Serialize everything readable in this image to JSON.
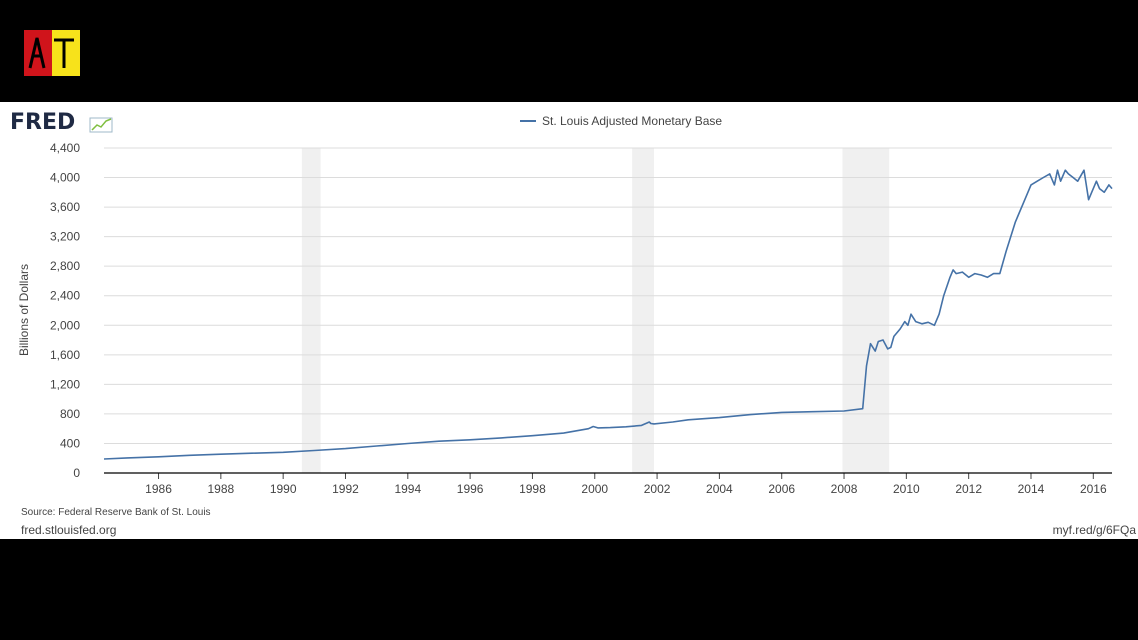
{
  "header": {
    "channel_logo_text": "AT",
    "channel_logo_colors": [
      "#d0141b",
      "#f7e21b"
    ]
  },
  "fred": {
    "logo_text": "FRED",
    "source": "Source: Federal Reserve Bank of St. Louis",
    "site": "fred.stlouisfed.org",
    "short_url": "myf.red/g/6FQa"
  },
  "chart_data": {
    "type": "line",
    "title": "",
    "xlabel": "",
    "ylabel": "Billions of Dollars",
    "xlim": [
      1984.25,
      2016.6
    ],
    "ylim": [
      0,
      4400
    ],
    "y_ticks": [
      0,
      400,
      800,
      1200,
      1600,
      2000,
      2400,
      2800,
      3200,
      3600,
      4000,
      4400
    ],
    "y_tick_labels": [
      "0",
      "400",
      "800",
      "1,200",
      "1,600",
      "2,000",
      "2,400",
      "2,800",
      "3,200",
      "3,600",
      "4,000",
      "4,400"
    ],
    "x_ticks": [
      1986,
      1988,
      1990,
      1992,
      1994,
      1996,
      1998,
      2000,
      2002,
      2004,
      2006,
      2008,
      2010,
      2012,
      2014,
      2016
    ],
    "x_tick_labels": [
      "1986",
      "1988",
      "1990",
      "1992",
      "1994",
      "1996",
      "1998",
      "2000",
      "2002",
      "2004",
      "2006",
      "2008",
      "2010",
      "2012",
      "2014",
      "2016"
    ],
    "grid": true,
    "legend_position": "top-center",
    "recessions": [
      [
        1990.6,
        1991.2
      ],
      [
        2001.2,
        2001.9
      ],
      [
        2007.95,
        2009.45
      ]
    ],
    "series": [
      {
        "name": "St. Louis Adjusted Monetary Base",
        "color": "#4572a7",
        "x": [
          1984.25,
          1985,
          1986,
          1987,
          1988,
          1989,
          1990,
          1991,
          1992,
          1993,
          1994,
          1995,
          1996,
          1997,
          1998,
          1999,
          1999.8,
          1999.95,
          2000.1,
          2000.5,
          2001,
          2001.5,
          2001.75,
          2001.8,
          2001.9,
          2002.5,
          2003,
          2004,
          2005,
          2006,
          2007,
          2008,
          2008.6,
          2008.72,
          2008.85,
          2009,
          2009.1,
          2009.25,
          2009.4,
          2009.5,
          2009.6,
          2009.8,
          2009.95,
          2010.05,
          2010.15,
          2010.3,
          2010.5,
          2010.7,
          2010.9,
          2011.05,
          2011.2,
          2011.4,
          2011.5,
          2011.6,
          2011.8,
          2012,
          2012.2,
          2012.4,
          2012.6,
          2012.8,
          2013,
          2013.2,
          2013.5,
          2013.8,
          2014,
          2014.2,
          2014.4,
          2014.6,
          2014.75,
          2014.85,
          2014.95,
          2015.1,
          2015.2,
          2015.35,
          2015.5,
          2015.7,
          2015.85,
          2015.95,
          2016.1,
          2016.2,
          2016.35,
          2016.5,
          2016.6
        ],
        "values": [
          190,
          205,
          220,
          240,
          255,
          268,
          280,
          305,
          330,
          365,
          400,
          430,
          450,
          475,
          505,
          540,
          600,
          630,
          610,
          615,
          625,
          645,
          690,
          670,
          665,
          690,
          720,
          750,
          790,
          820,
          830,
          840,
          870,
          1450,
          1750,
          1650,
          1780,
          1800,
          1680,
          1700,
          1850,
          1950,
          2050,
          2000,
          2150,
          2050,
          2020,
          2040,
          2000,
          2150,
          2400,
          2650,
          2750,
          2700,
          2720,
          2650,
          2700,
          2680,
          2650,
          2700,
          2700,
          3000,
          3400,
          3700,
          3900,
          3950,
          4000,
          4050,
          3900,
          4100,
          3950,
          4100,
          4050,
          4000,
          3950,
          4100,
          3700,
          3800,
          3950,
          3850,
          3800,
          3900,
          3850
        ]
      }
    ]
  }
}
